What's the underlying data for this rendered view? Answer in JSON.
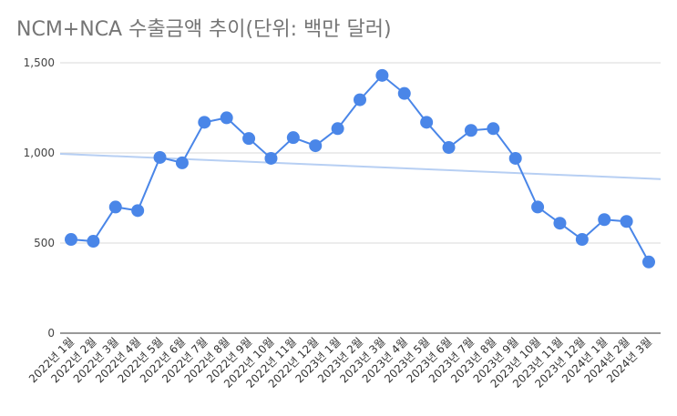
{
  "chart_data": {
    "type": "line",
    "title": "NCM+NCA 수출금액 추이(단위: 백만 달러)",
    "xlabel": "",
    "ylabel": "",
    "ylim": [
      0,
      1500
    ],
    "yticks": [
      "0",
      "500",
      "1,000",
      "1,500"
    ],
    "categories": [
      "2022년 1월",
      "2022년 2월",
      "2022년 3월",
      "2022년 4월",
      "2022년 5월",
      "2022년 6월",
      "2022년 7월",
      "2022년 8월",
      "2022년 9월",
      "2022년 10월",
      "2022년 11월",
      "2022년 12월",
      "2023년 1월",
      "2023년 2월",
      "2023년 3월",
      "2023년 4월",
      "2023년 5월",
      "2023년 6월",
      "2023년 7월",
      "2023년 8월",
      "2023년 9월",
      "2023년 10월",
      "2023년 11월",
      "2023년 12월",
      "2024년 1월",
      "2024년 2월",
      "2024년 3월"
    ],
    "series": [
      {
        "values": [
          520,
          510,
          700,
          680,
          975,
          945,
          1170,
          1195,
          1080,
          970,
          1085,
          1040,
          1135,
          1295,
          1430,
          1330,
          1170,
          1030,
          1125,
          1135,
          970,
          700,
          610,
          520,
          630,
          620,
          395
        ]
      }
    ],
    "trendline": {
      "start": 995,
      "end": 855
    },
    "grid": true,
    "legend": "none",
    "colors": {
      "series": "#4a86e8",
      "trendline": "#b7cff3",
      "grid": "#d9d9d9",
      "axis": "#333333"
    }
  }
}
